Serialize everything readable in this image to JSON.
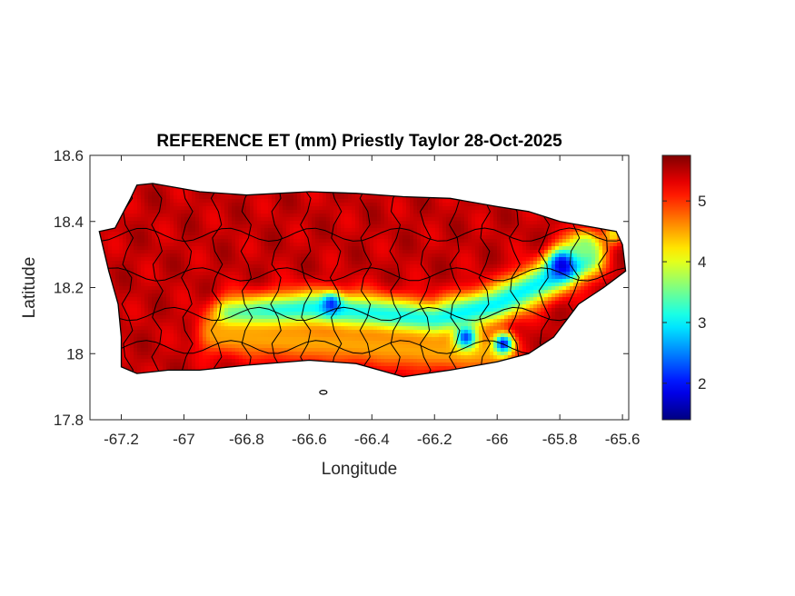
{
  "chart_data": {
    "type": "heatmap",
    "title": "REFERENCE ET (mm) Priestly Taylor 28-Oct-2025",
    "xlabel": "Longitude",
    "ylabel": "Latitude",
    "xlim": [
      -67.3,
      -65.58
    ],
    "ylim": [
      17.8,
      18.6
    ],
    "x_ticks": [
      -67.2,
      -67,
      -66.8,
      -66.6,
      -66.4,
      -66.2,
      -66,
      -65.8,
      -65.6
    ],
    "x_tick_labels": [
      "-67.2",
      "-67",
      "-66.8",
      "-66.6",
      "-66.4",
      "-66.2",
      "-66",
      "-65.8",
      "-65.6"
    ],
    "y_ticks": [
      17.8,
      18,
      18.2,
      18.4,
      18.6
    ],
    "y_tick_labels": [
      "17.8",
      "18",
      "18.2",
      "18.4",
      "18.6"
    ],
    "colorbar": {
      "colormap": "jet",
      "range": [
        1.4,
        5.75
      ],
      "ticks": [
        2,
        3,
        4,
        5
      ],
      "tick_labels": [
        "2",
        "3",
        "4",
        "5"
      ]
    },
    "field": {
      "background_value": 5.45,
      "features": [
        {
          "type": "band",
          "lon": [
            -66.85,
            -66.6,
            -66.4,
            -66.2,
            -66.0,
            -65.85,
            -65.72
          ],
          "lat": [
            18.11,
            18.135,
            18.12,
            18.1,
            18.15,
            18.22,
            18.29
          ],
          "value": 3.0,
          "width": 0.055
        },
        {
          "type": "band",
          "lon": [
            -66.9,
            -66.7,
            -66.5,
            -66.25,
            -66.0
          ],
          "lat": [
            18.06,
            18.04,
            18.03,
            18.01,
            18.0
          ],
          "value": 4.5,
          "width": 0.06
        },
        {
          "type": "blob",
          "lon": -65.79,
          "lat": 18.27,
          "value": 1.7,
          "radius": 0.045
        },
        {
          "type": "blob",
          "lon": -66.53,
          "lat": 18.15,
          "value": 2.1,
          "radius": 0.03
        },
        {
          "type": "blob",
          "lon": -66.1,
          "lat": 18.05,
          "value": 2.2,
          "radius": 0.035
        },
        {
          "type": "blob",
          "lon": -65.98,
          "lat": 18.03,
          "value": 2.0,
          "radius": 0.03
        },
        {
          "type": "blob",
          "lon": -65.72,
          "lat": 18.32,
          "value": 3.6,
          "radius": 0.05
        },
        {
          "type": "blob",
          "lon": -65.63,
          "lat": 18.36,
          "value": 4.2,
          "radius": 0.03
        }
      ]
    },
    "island_outline": [
      [
        -67.27,
        18.37
      ],
      [
        -67.22,
        18.38
      ],
      [
        -67.17,
        18.47
      ],
      [
        -67.15,
        18.51
      ],
      [
        -67.1,
        18.515
      ],
      [
        -66.95,
        18.49
      ],
      [
        -66.8,
        18.48
      ],
      [
        -66.6,
        18.49
      ],
      [
        -66.45,
        18.485
      ],
      [
        -66.3,
        18.475
      ],
      [
        -66.15,
        18.47
      ],
      [
        -66.0,
        18.445
      ],
      [
        -65.9,
        18.43
      ],
      [
        -65.8,
        18.4
      ],
      [
        -65.68,
        18.38
      ],
      [
        -65.62,
        18.37
      ],
      [
        -65.6,
        18.33
      ],
      [
        -65.59,
        18.25
      ],
      [
        -65.66,
        18.2
      ],
      [
        -65.74,
        18.15
      ],
      [
        -65.82,
        18.05
      ],
      [
        -65.9,
        18.0
      ],
      [
        -66.0,
        17.975
      ],
      [
        -66.15,
        17.95
      ],
      [
        -66.3,
        17.93
      ],
      [
        -66.45,
        17.97
      ],
      [
        -66.6,
        17.98
      ],
      [
        -66.8,
        17.965
      ],
      [
        -66.95,
        17.95
      ],
      [
        -67.05,
        17.95
      ],
      [
        -67.15,
        17.94
      ],
      [
        -67.2,
        17.96
      ],
      [
        -67.2,
        18.05
      ],
      [
        -67.21,
        18.15
      ],
      [
        -67.24,
        18.25
      ],
      [
        -67.27,
        18.37
      ]
    ]
  }
}
